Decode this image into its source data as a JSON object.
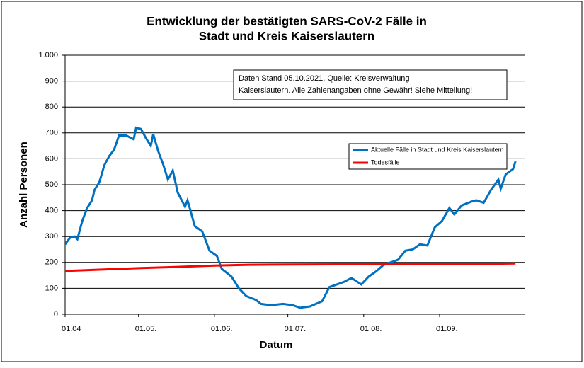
{
  "chart_data": {
    "type": "line",
    "title": [
      "Entwicklung der bestätigten SARS-CoV-2 Fälle in",
      "Stadt und Kreis Kaiserslautern"
    ],
    "annotation": [
      "Daten Stand 05.10.2021, Quelle: Kreisverwaltung",
      "Kaiserslautern. Alle Zahlenangaben ohne Gewähr! Siehe Mitteilung!"
    ],
    "y_label": "Anzahl Personen",
    "x_label": "Datum",
    "xlim": [
      "01.04",
      "06.10"
    ],
    "xticks": [
      {
        "value": "01.04",
        "label": "01.04"
      },
      {
        "value": "01.05",
        "label": "01.05."
      },
      {
        "value": "01.06",
        "label": "01.06."
      },
      {
        "value": "01.07",
        "label": "01.07."
      },
      {
        "value": "01.08",
        "label": "01.08."
      },
      {
        "value": "01.09",
        "label": "01.09."
      }
    ],
    "ylim": [
      0,
      1000
    ],
    "yticks": [
      0,
      100,
      200,
      300,
      400,
      500,
      600,
      700,
      800,
      900,
      {
        "value": 1000,
        "label": "1.000"
      }
    ],
    "grid": true,
    "legend": "right",
    "series": [
      {
        "name": "Aktuelle Fälle in Stadt und Kreis Kaiserslautern",
        "color": "#0070c0",
        "x": [
          "01.04",
          "03.04",
          "05.04",
          "06.04",
          "08.04",
          "10.04",
          "12.04",
          "13.04",
          "15.04",
          "17.04",
          "19.04",
          "21.04",
          "23.04",
          "26.04",
          "29.04",
          "30.04",
          "02.05",
          "04.05",
          "06.05",
          "07.05",
          "09.05",
          "11.05",
          "13.05",
          "15.05",
          "17.05",
          "20.05",
          "21.05",
          "24.05",
          "27.05",
          "30.05",
          "02.06",
          "04.06",
          "08.06",
          "11.06",
          "14.06",
          "18.06",
          "20.06",
          "24.06",
          "29.06",
          "03.07",
          "06.07",
          "10.07",
          "15.07",
          "18.07",
          "21.07",
          "24.07",
          "27.07",
          "31.07",
          "03.08",
          "06.08",
          "09.08",
          "12.08",
          "15.08",
          "18.08",
          "21.08",
          "24.08",
          "27.08",
          "30.08",
          "02.09",
          "05.09",
          "07.09",
          "10.09",
          "14.09",
          "16.09",
          "19.09",
          "22.09",
          "25.09",
          "26.09",
          "28.09",
          "01.10",
          "02.10"
        ],
        "values": [
          270,
          295,
          300,
          290,
          360,
          410,
          440,
          480,
          510,
          575,
          610,
          635,
          690,
          690,
          675,
          720,
          715,
          680,
          650,
          695,
          630,
          580,
          520,
          555,
          470,
          415,
          440,
          340,
          320,
          245,
          225,
          175,
          145,
          100,
          70,
          55,
          40,
          35,
          40,
          35,
          25,
          30,
          50,
          105,
          115,
          125,
          140,
          115,
          145,
          165,
          190,
          200,
          210,
          245,
          250,
          270,
          265,
          335,
          360,
          410,
          385,
          420,
          435,
          440,
          430,
          480,
          520,
          485,
          540,
          560,
          590
        ]
      },
      {
        "name": "Todesfälle",
        "color": "#ff0000",
        "x": [
          "01.04",
          "15.04",
          "01.05",
          "15.05",
          "01.06",
          "15.06",
          "01.07",
          "01.08",
          "01.09",
          "15.09",
          "02.10"
        ],
        "values": [
          167,
          172,
          178,
          182,
          188,
          191,
          192,
          193,
          194,
          194,
          196
        ]
      }
    ]
  }
}
